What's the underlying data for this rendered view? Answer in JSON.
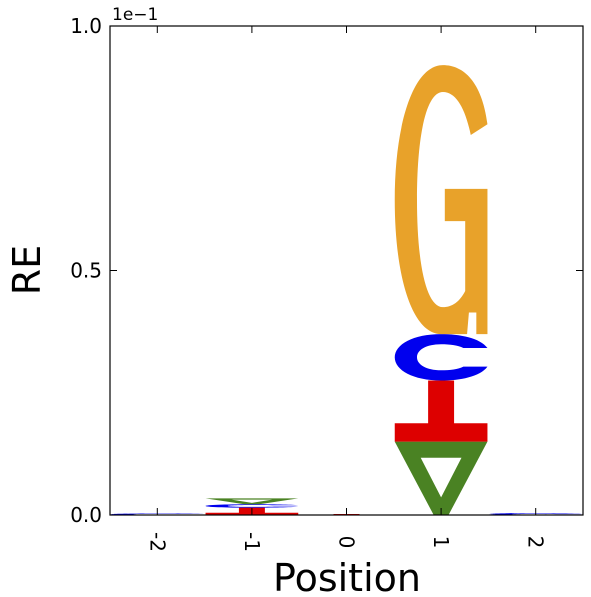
{
  "chart_data": {
    "type": "sequence-logo",
    "xlabel": "Position",
    "ylabel": "RE",
    "y_offset_label": "1e−1",
    "ylim": [
      0,
      0.1
    ],
    "y_ticks": [
      {
        "value": 0.0,
        "label": "0.0"
      },
      {
        "value": 0.05,
        "label": "0.5"
      },
      {
        "value": 0.1,
        "label": "1.0"
      }
    ],
    "positions": [
      "-2",
      "-1",
      "0",
      "1",
      "2"
    ],
    "stacks": [
      {
        "position": "-2",
        "letters": [
          {
            "letter": "C",
            "height": 0.0003
          }
        ]
      },
      {
        "position": "-1",
        "letters": [
          {
            "letter": "T",
            "height": 0.0015
          },
          {
            "letter": "C",
            "height": 0.0007
          },
          {
            "letter": "A",
            "height": 0.0012
          }
        ]
      },
      {
        "position": "0",
        "letters": [
          {
            "letter": "T",
            "height": 0.0002
          }
        ]
      },
      {
        "position": "1",
        "letters": [
          {
            "letter": "A",
            "height": 0.015
          },
          {
            "letter": "T",
            "height": 0.0125
          },
          {
            "letter": "C",
            "height": 0.0095
          },
          {
            "letter": "G",
            "height": 0.055
          }
        ]
      },
      {
        "position": "2",
        "letters": [
          {
            "letter": "C",
            "height": 0.0004
          }
        ]
      }
    ],
    "colors": {
      "A": "#4a8223",
      "C": "#0000ee",
      "G": "#e8a22a",
      "T": "#dd0000"
    },
    "grid": false,
    "legend": "none"
  }
}
